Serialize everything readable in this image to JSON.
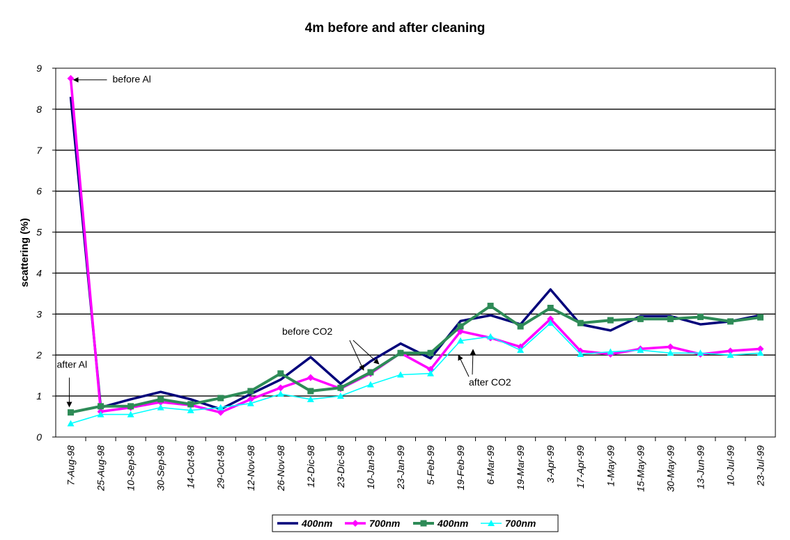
{
  "chart_data": {
    "type": "line",
    "title": "4m before and after cleaning",
    "xlabel": "",
    "ylabel": "scattering (%)",
    "ylim": [
      0,
      9
    ],
    "yticks": [
      "0",
      "1",
      "2",
      "3",
      "4",
      "5",
      "6",
      "7",
      "8",
      "9"
    ],
    "grid": "horizontal",
    "legend_position": "bottom",
    "categories": [
      "7-Aug-98",
      "25-Aug-98",
      "10-Sep-98",
      "30-Sep-98",
      "14-Oct-98",
      "29-Oct-98",
      "12-Nov-98",
      "26-Nov-98",
      "12-Dic-98",
      "23-Dic-98",
      "10-Jan-99",
      "23-Jan-99",
      "5-Feb-99",
      "19-Feb-99",
      "6-Mar-99",
      "19-Mar-99",
      "3-Apr-99",
      "17-Apr-99",
      "1-May-99",
      "15-May-99",
      "30-May-99",
      "13-Jun-99",
      "10-Jul-99",
      "23-Jul-99"
    ],
    "series": [
      {
        "name": "400nm",
        "color": "#00007a",
        "marker": "none",
        "values": [
          8.3,
          0.72,
          0.92,
          1.1,
          0.92,
          0.68,
          1.05,
          1.4,
          1.95,
          1.3,
          1.85,
          2.28,
          1.92,
          2.83,
          2.97,
          2.75,
          3.6,
          2.75,
          2.6,
          2.95,
          2.95,
          2.75,
          2.82,
          2.97
        ]
      },
      {
        "name": "700nm",
        "color": "#ff00ff",
        "marker": "diamond",
        "values": [
          8.75,
          0.62,
          0.72,
          0.85,
          0.78,
          0.6,
          0.92,
          1.2,
          1.45,
          1.18,
          1.55,
          2.05,
          1.65,
          2.58,
          2.42,
          2.2,
          2.88,
          2.1,
          2.02,
          2.15,
          2.2,
          2.02,
          2.1,
          2.15
        ]
      },
      {
        "name": "400nm",
        "color": "#2e8b57",
        "marker": "square",
        "values": [
          0.6,
          0.75,
          0.75,
          0.92,
          0.8,
          0.95,
          1.12,
          1.55,
          1.12,
          1.2,
          1.58,
          2.05,
          2.05,
          2.7,
          3.2,
          2.7,
          3.15,
          2.78,
          2.85,
          2.88,
          2.88,
          2.93,
          2.82,
          2.92
        ]
      },
      {
        "name": "700nm",
        "color": "#00ffff",
        "marker": "triangle",
        "values": [
          0.33,
          0.55,
          0.55,
          0.72,
          0.65,
          0.72,
          0.82,
          1.05,
          0.92,
          1.0,
          1.28,
          1.52,
          1.55,
          2.35,
          2.45,
          2.12,
          2.78,
          2.02,
          2.08,
          2.12,
          2.05,
          2.05,
          2.0,
          2.05
        ]
      }
    ],
    "annotations": [
      {
        "text": "before Al",
        "x": "7-Aug-98",
        "y": 8.75
      },
      {
        "text": "after Al",
        "x": "7-Aug-98",
        "y": 0.6
      },
      {
        "text": "before CO2",
        "x": "10-Jan-99",
        "y": 1.85
      },
      {
        "text": "after CO2",
        "x": "5-Feb-99",
        "y": 2.0
      }
    ]
  }
}
